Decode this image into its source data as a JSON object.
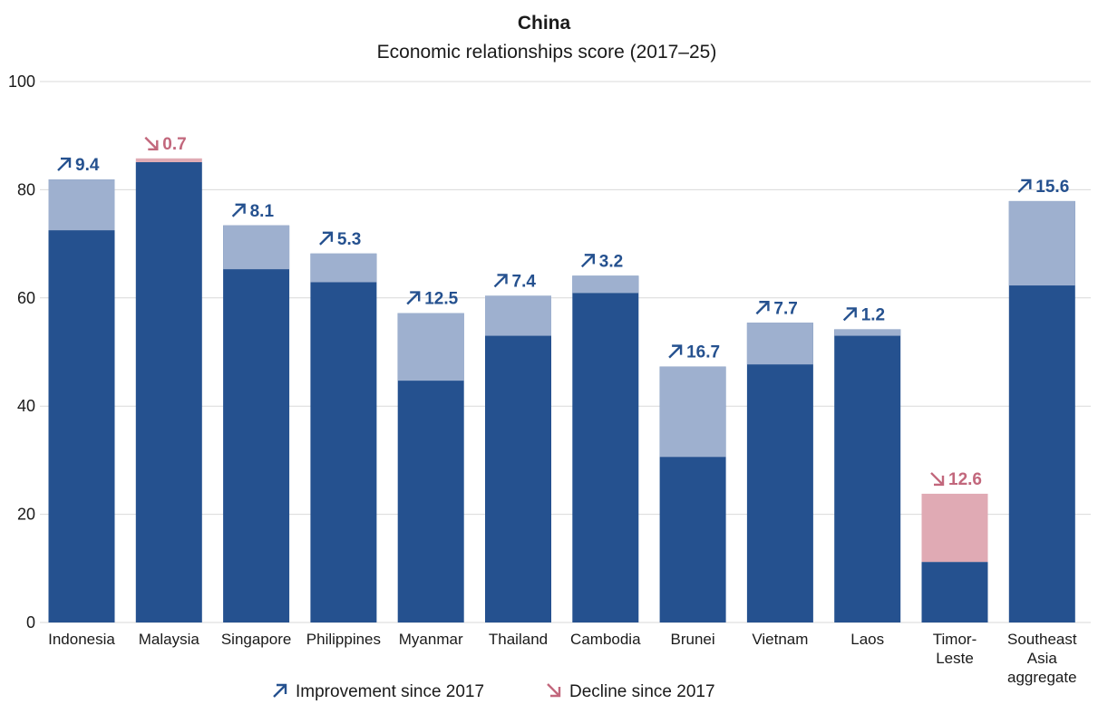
{
  "chart_data": {
    "type": "bar",
    "title": "China",
    "subtitle": "Economic relationships score (2017–25)",
    "categories": [
      [
        "Indonesia"
      ],
      [
        "Malaysia"
      ],
      [
        "Singapore"
      ],
      [
        "Philippines"
      ],
      [
        "Myanmar"
      ],
      [
        "Thailand"
      ],
      [
        "Cambodia"
      ],
      [
        "Brunei"
      ],
      [
        "Vietnam"
      ],
      [
        "Laos"
      ],
      [
        "Timor-",
        "Leste"
      ],
      [
        "Southeast",
        "Asia",
        "aggregate"
      ]
    ],
    "score_2025": [
      81.9,
      85.1,
      73.4,
      68.2,
      57.2,
      60.4,
      64.1,
      47.3,
      55.4,
      54.2,
      11.2,
      77.9
    ],
    "score_2017": [
      72.5,
      85.8,
      65.3,
      62.9,
      44.7,
      53.0,
      60.9,
      30.6,
      47.7,
      53.0,
      23.8,
      62.3
    ],
    "change_labels": [
      "9.4",
      "0.7",
      "8.1",
      "5.3",
      "12.5",
      "7.4",
      "3.2",
      "16.7",
      "7.7",
      "1.2",
      "12.6",
      "15.6"
    ],
    "change_direction": [
      "up",
      "down",
      "up",
      "up",
      "up",
      "up",
      "up",
      "up",
      "up",
      "up",
      "down",
      "up"
    ],
    "yaxis": {
      "min": 0,
      "max": 100,
      "ticks": [
        0,
        20,
        40,
        60,
        80,
        100
      ]
    },
    "grid": true,
    "legend": {
      "placement": "bottom-center",
      "items": [
        {
          "label": "Improvement since 2017",
          "icon": "arrow-up-right-icon"
        },
        {
          "label": "Decline since 2017",
          "icon": "arrow-down-right-icon"
        }
      ]
    },
    "colors": {
      "base": "#25518f",
      "improvement": "#9eb0cf",
      "decline": "#e0aab4",
      "improvement_text": "#25518f",
      "decline_text": "#c2677c",
      "grid": "#d9d9d9"
    }
  }
}
